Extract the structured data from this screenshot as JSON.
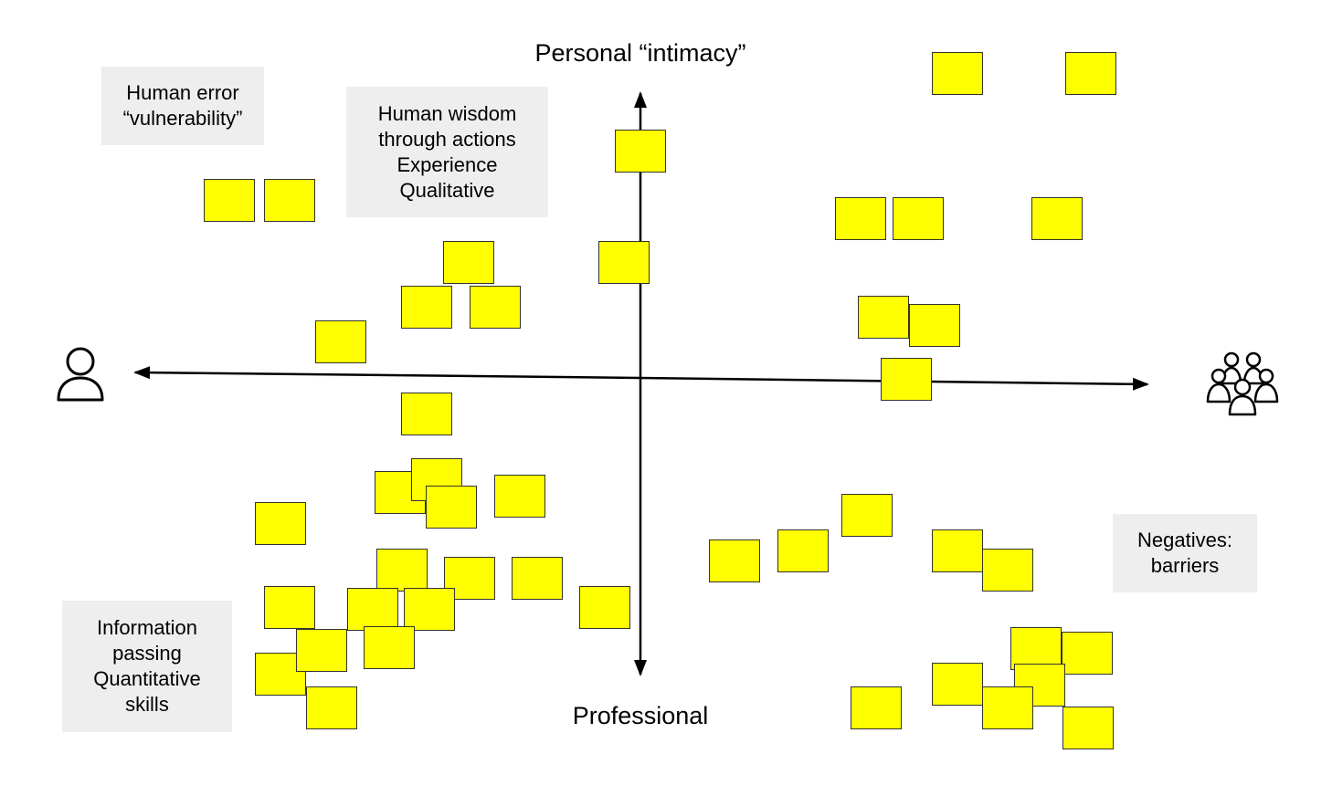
{
  "axes": {
    "top_label": "Personal “intimacy”",
    "bottom_label": "Professional"
  },
  "icons": {
    "left": "single-person-icon",
    "right": "group-of-people-icon"
  },
  "notes": {
    "human_error": "Human error\n“vulnerability”",
    "human_wisdom": "Human wisdom\nthrough actions\nExperience\nQualitative",
    "information": "Information\npassing\nQuantitative\nskills",
    "negatives": "Negatives:\nbarriers"
  },
  "colors": {
    "sticky_fill": "#ffff00",
    "sticky_border": "#333333",
    "note_background": "#eeeeee",
    "axis": "#000000"
  }
}
